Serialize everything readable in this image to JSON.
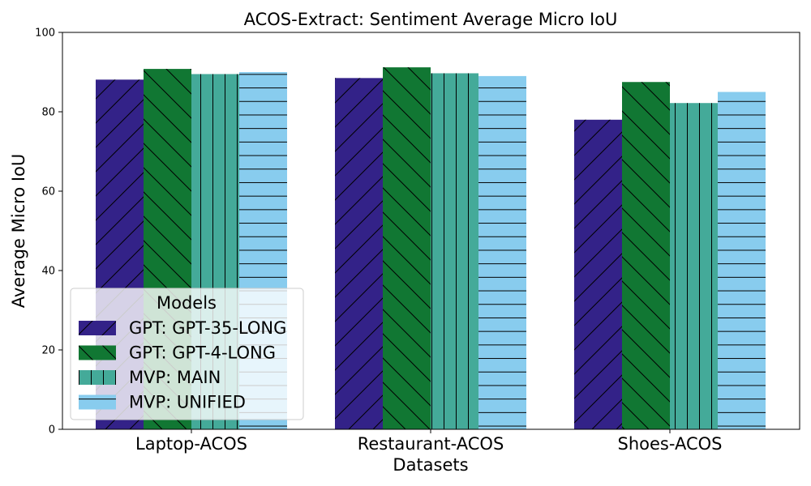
{
  "chart_data": {
    "type": "bar",
    "title": "ACOS-Extract: Sentiment Average Micro IoU",
    "xlabel": "Datasets",
    "ylabel": "Average Micro IoU",
    "categories": [
      "Laptop-ACOS",
      "Restaurant-ACOS",
      "Shoes-ACOS"
    ],
    "ylim": [
      0,
      100
    ],
    "yticks": [
      "0",
      "20",
      "40",
      "60",
      "80",
      "100"
    ],
    "grid": false,
    "legend": {
      "title": "Models",
      "placement": "lower-left"
    },
    "series": [
      {
        "name": "GPT: GPT-35-LONG",
        "values": [
          88.1,
          88.5,
          78.0
        ],
        "color": "#332288",
        "hatch": "diagonal"
      },
      {
        "name": "GPT: GPT-4-LONG",
        "values": [
          90.8,
          91.2,
          87.5
        ],
        "color": "#117733",
        "hatch": "backslash"
      },
      {
        "name": "MVP: MAIN",
        "values": [
          89.5,
          89.7,
          82.2
        ],
        "color": "#44AA99",
        "hatch": "vertical"
      },
      {
        "name": "MVP: UNIFIED",
        "values": [
          90.0,
          89.0,
          85.0
        ],
        "color": "#88CCEE",
        "hatch": "horizontal"
      }
    ]
  }
}
